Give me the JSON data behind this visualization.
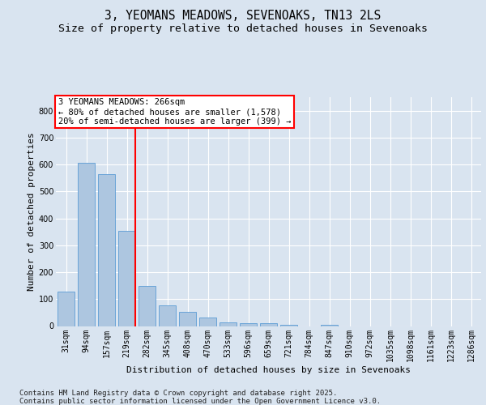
{
  "title_line1": "3, YEOMANS MEADOWS, SEVENOAKS, TN13 2LS",
  "title_line2": "Size of property relative to detached houses in Sevenoaks",
  "xlabel": "Distribution of detached houses by size in Sevenoaks",
  "ylabel": "Number of detached properties",
  "categories": [
    "31sqm",
    "94sqm",
    "157sqm",
    "219sqm",
    "282sqm",
    "345sqm",
    "408sqm",
    "470sqm",
    "533sqm",
    "596sqm",
    "659sqm",
    "721sqm",
    "784sqm",
    "847sqm",
    "910sqm",
    "972sqm",
    "1035sqm",
    "1098sqm",
    "1161sqm",
    "1223sqm",
    "1286sqm"
  ],
  "values": [
    128,
    605,
    565,
    355,
    150,
    78,
    52,
    33,
    14,
    12,
    12,
    5,
    0,
    5,
    0,
    0,
    0,
    0,
    0,
    0,
    0
  ],
  "bar_color": "#adc6e0",
  "bar_edge_color": "#5b9bd5",
  "vline_color": "red",
  "annotation_text": "3 YEOMANS MEADOWS: 266sqm\n← 80% of detached houses are smaller (1,578)\n20% of semi-detached houses are larger (399) →",
  "annotation_box_color": "white",
  "annotation_box_edge": "red",
  "ylim": [
    0,
    850
  ],
  "yticks": [
    0,
    100,
    200,
    300,
    400,
    500,
    600,
    700,
    800
  ],
  "bg_color": "#d9e4f0",
  "plot_bg_color": "#d9e4f0",
  "footer_line1": "Contains HM Land Registry data © Crown copyright and database right 2025.",
  "footer_line2": "Contains public sector information licensed under the Open Government Licence v3.0.",
  "title_fontsize": 10.5,
  "subtitle_fontsize": 9.5,
  "axis_label_fontsize": 8,
  "tick_fontsize": 7,
  "footer_fontsize": 6.5,
  "annot_fontsize": 7.5
}
